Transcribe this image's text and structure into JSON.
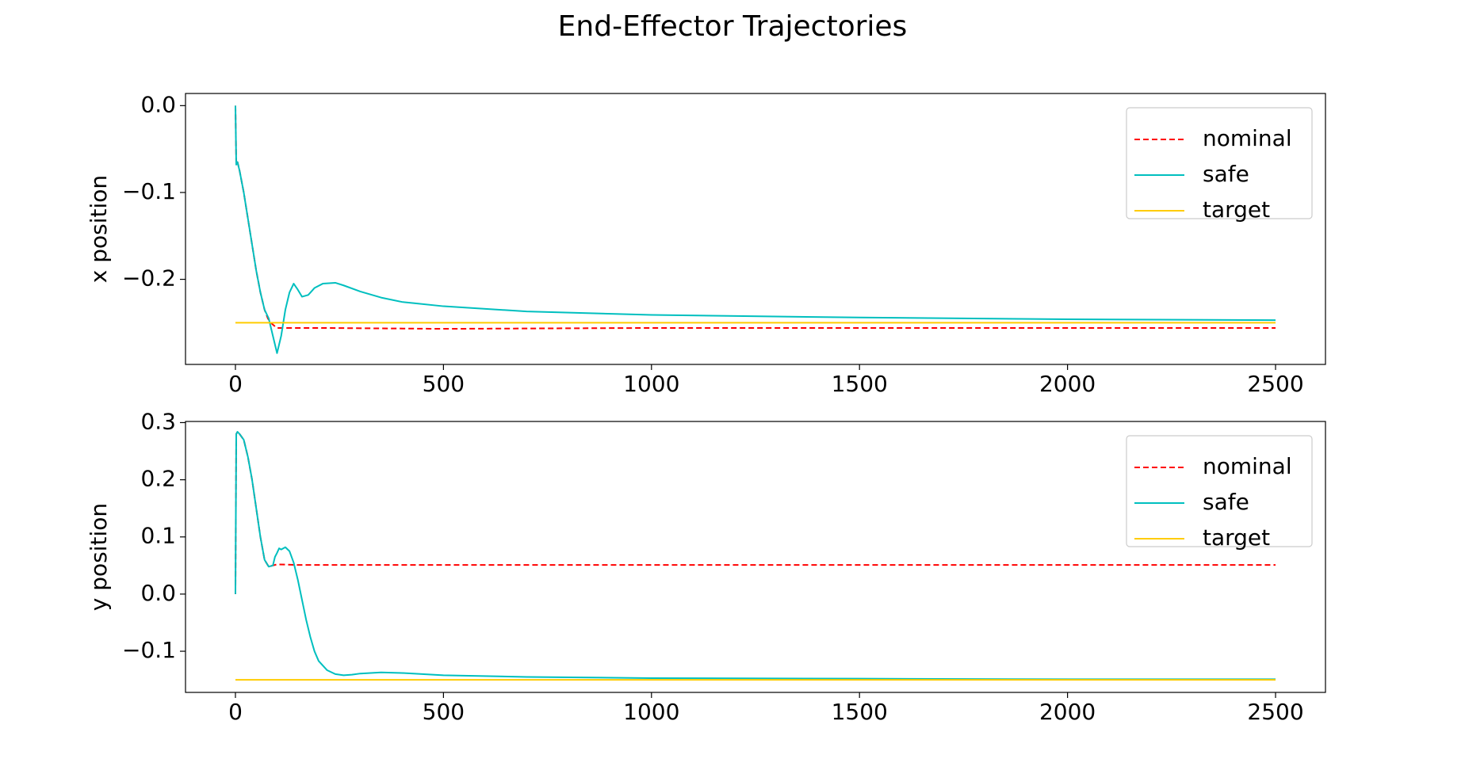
{
  "figure": {
    "title": "End-Effector Trajectories"
  },
  "chart_data": [
    {
      "type": "line",
      "title": "",
      "xlabel": "",
      "ylabel": "x position",
      "xlim": [
        -120,
        2620
      ],
      "ylim": [
        -0.298,
        0.014
      ],
      "xticks": [
        0,
        500,
        1000,
        1500,
        2000,
        2500
      ],
      "xtick_labels": [
        "0",
        "500",
        "1000",
        "1500",
        "2000",
        "2500"
      ],
      "yticks": [
        0.0,
        -0.1,
        -0.2
      ],
      "ytick_labels": [
        "0.0",
        "−0.1",
        "−0.2"
      ],
      "grid": false,
      "legend_position": "top-right",
      "series": [
        {
          "name": "nominal",
          "color": "#ff0000",
          "dash": "dashed",
          "x": [
            0,
            2,
            5,
            10,
            20,
            30,
            40,
            50,
            60,
            70,
            78,
            85,
            92,
            100,
            120,
            200,
            500,
            1000,
            1500,
            2000,
            2500
          ],
          "y": [
            0.0,
            -0.068,
            -0.065,
            -0.075,
            -0.1,
            -0.13,
            -0.16,
            -0.19,
            -0.215,
            -0.235,
            -0.245,
            -0.25,
            -0.253,
            -0.256,
            -0.256,
            -0.256,
            -0.257,
            -0.256,
            -0.256,
            -0.256,
            -0.256
          ]
        },
        {
          "name": "safe",
          "color": "#00bfbf",
          "dash": "solid",
          "x": [
            0,
            2,
            5,
            10,
            20,
            30,
            40,
            50,
            60,
            70,
            80,
            90,
            100,
            110,
            120,
            130,
            140,
            150,
            160,
            175,
            190,
            210,
            240,
            260,
            300,
            350,
            400,
            500,
            700,
            1000,
            1500,
            2000,
            2500
          ],
          "y": [
            0.0,
            -0.068,
            -0.065,
            -0.075,
            -0.1,
            -0.13,
            -0.16,
            -0.19,
            -0.215,
            -0.235,
            -0.245,
            -0.265,
            -0.285,
            -0.265,
            -0.235,
            -0.215,
            -0.205,
            -0.212,
            -0.22,
            -0.218,
            -0.21,
            -0.205,
            -0.204,
            -0.207,
            -0.214,
            -0.221,
            -0.226,
            -0.231,
            -0.237,
            -0.241,
            -0.244,
            -0.246,
            -0.247
          ]
        },
        {
          "name": "target",
          "color": "#ffcc00",
          "dash": "solid",
          "x": [
            0,
            2500
          ],
          "y": [
            -0.25,
            -0.25
          ]
        }
      ]
    },
    {
      "type": "line",
      "title": "",
      "xlabel": "",
      "ylabel": "y position",
      "xlim": [
        -120,
        2620
      ],
      "ylim": [
        -0.172,
        0.302
      ],
      "xticks": [
        0,
        500,
        1000,
        1500,
        2000,
        2500
      ],
      "xtick_labels": [
        "0",
        "500",
        "1000",
        "1500",
        "2000",
        "2500"
      ],
      "yticks": [
        0.3,
        0.2,
        0.1,
        0.0,
        -0.1
      ],
      "ytick_labels": [
        "0.3",
        "0.2",
        "0.1",
        "0.0",
        "−0.1"
      ],
      "grid": false,
      "legend_position": "top-right",
      "series": [
        {
          "name": "nominal",
          "color": "#ff0000",
          "dash": "dashed",
          "x": [
            0,
            2,
            5,
            10,
            20,
            30,
            40,
            50,
            60,
            70,
            80,
            90,
            100,
            150,
            500,
            1000,
            1500,
            2000,
            2500
          ],
          "y": [
            0.0,
            0.28,
            0.284,
            0.28,
            0.27,
            0.24,
            0.2,
            0.15,
            0.1,
            0.06,
            0.048,
            0.05,
            0.052,
            0.051,
            0.051,
            0.051,
            0.051,
            0.051,
            0.051
          ]
        },
        {
          "name": "safe",
          "color": "#00bfbf",
          "dash": "solid",
          "x": [
            0,
            2,
            5,
            10,
            20,
            30,
            40,
            50,
            60,
            70,
            80,
            90,
            95,
            100,
            105,
            110,
            120,
            130,
            140,
            150,
            160,
            170,
            180,
            190,
            200,
            220,
            240,
            260,
            280,
            300,
            350,
            400,
            500,
            700,
            1000,
            1500,
            2000,
            2500
          ],
          "y": [
            0.0,
            0.28,
            0.284,
            0.28,
            0.27,
            0.24,
            0.2,
            0.15,
            0.1,
            0.06,
            0.048,
            0.05,
            0.065,
            0.072,
            0.08,
            0.078,
            0.082,
            0.075,
            0.055,
            0.025,
            -0.01,
            -0.045,
            -0.075,
            -0.1,
            -0.117,
            -0.133,
            -0.14,
            -0.142,
            -0.141,
            -0.139,
            -0.137,
            -0.138,
            -0.142,
            -0.145,
            -0.147,
            -0.148,
            -0.149,
            -0.149
          ]
        },
        {
          "name": "target",
          "color": "#ffcc00",
          "dash": "solid",
          "x": [
            0,
            2500
          ],
          "y": [
            -0.15,
            -0.15
          ]
        }
      ]
    }
  ]
}
